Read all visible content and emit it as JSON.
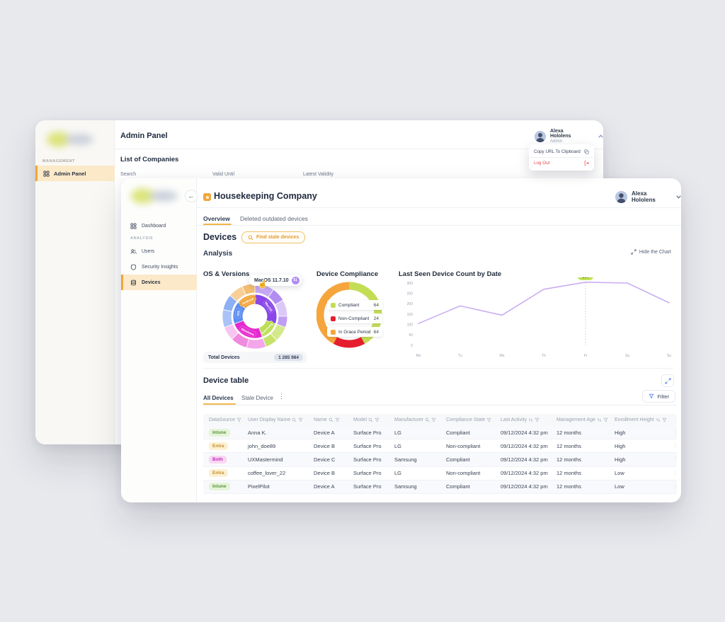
{
  "back_window": {
    "title": "Admin Panel",
    "sidebar_section": "MANAGEMENT",
    "sidebar_item": "Admin Panel",
    "list_title": "List of Companies",
    "columns": [
      "Search",
      "Valid Until",
      "Latest Validity"
    ],
    "user": {
      "name": "Alexa Hololens",
      "role": "Admin"
    },
    "menu": {
      "copy_label": "Copy URL To Clipboard",
      "logout_label": "Log Out"
    }
  },
  "front_window": {
    "company": "Housekeeping Company",
    "user_name": "Alexa Hololens",
    "sidebar": {
      "items": [
        {
          "label": "Dashboard",
          "icon": "dashboard-icon"
        },
        {
          "label": "ANALYSIS",
          "type": "section"
        },
        {
          "label": "Users",
          "icon": "users-icon"
        },
        {
          "label": "Security Insights",
          "icon": "shield-icon"
        },
        {
          "label": "Devices",
          "icon": "devices-icon",
          "active": true
        }
      ]
    },
    "tabs": [
      {
        "label": "Overview",
        "active": true
      },
      {
        "label": "Deleted outdated devices"
      }
    ],
    "devices_heading": "Devices",
    "find_stale_label": "Find stale devices",
    "analysis_heading": "Analysis",
    "hide_chart_label": "Hide the Chart"
  },
  "chart_data": [
    {
      "type": "pie",
      "variant": "sunburst",
      "title": "OS & Versions",
      "inner": [
        {
          "label": "MacOS",
          "value": 110,
          "color": "#8a46e8"
        },
        {
          "label": "Samsung",
          "value": 50,
          "color": "#b9dc4c"
        },
        {
          "label": "Windows",
          "value": 90,
          "color": "#e528cf"
        },
        {
          "label": "iOS",
          "value": 60,
          "color": "#5d8ef2"
        },
        {
          "label": "Android",
          "value": 50,
          "color": "#f2a53b"
        }
      ],
      "outer": [
        {
          "value": 35,
          "color": "#c7a9f6"
        },
        {
          "value": 25,
          "color": "#b28cf2"
        },
        {
          "value": 30,
          "color": "#dcc8f8"
        },
        {
          "value": 20,
          "color": "#bf9df4"
        },
        {
          "value": 28,
          "color": "#d4e98c"
        },
        {
          "value": 22,
          "color": "#c5e26a"
        },
        {
          "value": 35,
          "color": "#f4a6e9"
        },
        {
          "value": 30,
          "color": "#ef8ade"
        },
        {
          "value": 25,
          "color": "#f8c4f0"
        },
        {
          "value": 32,
          "color": "#a9c3f7"
        },
        {
          "value": 28,
          "color": "#8fb0f4"
        },
        {
          "value": 27,
          "color": "#f8cf96"
        },
        {
          "value": 23,
          "color": "#f3bd72"
        }
      ],
      "tooltip": {
        "label": "MacOS 11.7.10",
        "badge": "51"
      },
      "footer_label": "Total Devices",
      "footer_value": "1 285 984"
    },
    {
      "type": "pie",
      "variant": "donut",
      "title": "Device Compliance",
      "segments": [
        {
          "label": "Compliant",
          "value": 64,
          "color": "#c3dd55"
        },
        {
          "label": "Non-Compliant",
          "value": 24,
          "color": "#e51e2e"
        },
        {
          "label": "In Grace Period",
          "value": 64,
          "color": "#f5a53c"
        }
      ],
      "legend_position": "center"
    },
    {
      "type": "line",
      "title": "Last Seen Device Count by Date",
      "x": [
        "Mo",
        "Tu",
        "We",
        "Th",
        "Fr",
        "Sa",
        "Su"
      ],
      "values": [
        105,
        190,
        145,
        270,
        304,
        300,
        205
      ],
      "yticks": [
        0,
        50,
        100,
        150,
        200,
        250,
        300
      ],
      "ylim": [
        0,
        300
      ],
      "highlight_index": 4,
      "highlight_label": "304",
      "line_color": "#c9aef2",
      "badge_color": "#bfe14e",
      "grid": false,
      "legend": "none"
    }
  ],
  "device_table": {
    "heading": "Device table",
    "tabs": [
      {
        "label": "All Devices",
        "active": true
      },
      {
        "label": "Stale Device"
      }
    ],
    "filter_label": "Filter",
    "columns": [
      {
        "label": "DataSource",
        "icons": [
          "filter"
        ]
      },
      {
        "label": "User Display Name",
        "icons": [
          "search",
          "filter"
        ]
      },
      {
        "label": "Name",
        "icons": [
          "search",
          "filter"
        ]
      },
      {
        "label": "Model",
        "icons": [
          "search",
          "filter"
        ]
      },
      {
        "label": "Manufacturer",
        "icons": [
          "search",
          "filter"
        ]
      },
      {
        "label": "Compliance State",
        "icons": [
          "filter"
        ]
      },
      {
        "label": "Last Activity",
        "icons": [
          "sort",
          "filter"
        ]
      },
      {
        "label": "Management Age",
        "icons": [
          "sort",
          "filter"
        ]
      },
      {
        "label": "Enrollment Height",
        "icons": [
          "sort",
          "filter"
        ]
      }
    ],
    "rows": [
      {
        "source": "Intune",
        "user": "Anna K.",
        "name": "Device A",
        "model": "Surface Pro",
        "manufacturer": "LG",
        "compliance": "Compliant",
        "last_activity": "09/12/2024 4:32 pm",
        "age": "12 months",
        "height": "High"
      },
      {
        "source": "Entra",
        "user": "john_doe89",
        "name": "Device B",
        "model": "Surface Pro",
        "manufacturer": "LG",
        "compliance": "Non-compliant",
        "last_activity": "09/12/2024 4:32 pm",
        "age": "12 months",
        "height": "High"
      },
      {
        "source": "Both",
        "user": "UXMastermind",
        "name": "Device C",
        "model": "Surface Pro",
        "manufacturer": "Samsung",
        "compliance": "Compliant",
        "last_activity": "09/12/2024 4:32 pm",
        "age": "12 months",
        "height": "High"
      },
      {
        "source": "Entra",
        "user": "coffee_lover_22",
        "name": "Device B",
        "model": "Surface Pro",
        "manufacturer": "LG",
        "compliance": "Non-compliant",
        "last_activity": "09/12/2024 4:32 pm",
        "age": "12 months",
        "height": "Low"
      },
      {
        "source": "Intune",
        "user": "PixelPilot",
        "name": "Device A",
        "model": "Surface Pro",
        "manufacturer": "Samsung",
        "compliance": "Compliant",
        "last_activity": "09/12/2024 4:32 pm",
        "age": "12 months",
        "height": "Low"
      }
    ],
    "badge_styles": {
      "Intune": {
        "bg": "#e5f4d8",
        "fg": "#5f9440"
      },
      "Entra": {
        "bg": "#fdf0d2",
        "fg": "#c3902e"
      },
      "Both": {
        "bg": "#f8d7f3",
        "fg": "#c12db8"
      }
    }
  }
}
